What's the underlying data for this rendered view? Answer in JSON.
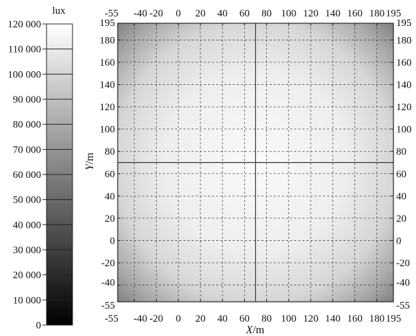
{
  "chart_data": {
    "type": "heatmap",
    "colorbar": {
      "unit_label": "lux",
      "range": [
        0,
        120000
      ],
      "ticks": [
        {
          "value": 120000,
          "label": "120 000"
        },
        {
          "value": 110000,
          "label": "110 000"
        },
        {
          "value": 100000,
          "label": "100 000"
        },
        {
          "value": 90000,
          "label": "90 000"
        },
        {
          "value": 80000,
          "label": "80 000"
        },
        {
          "value": 70000,
          "label": "70 000"
        },
        {
          "value": 60000,
          "label": "60 000"
        },
        {
          "value": 50000,
          "label": "50 000"
        },
        {
          "value": 40000,
          "label": "40 000"
        },
        {
          "value": 30000,
          "label": "30 000"
        },
        {
          "value": 20000,
          "label": "20 000"
        },
        {
          "value": 10000,
          "label": "10 000"
        },
        {
          "value": 0,
          "label": "0"
        }
      ],
      "color_low": "#000000",
      "color_high": "#ffffff"
    },
    "map": {
      "x_label_italic": "X",
      "x_label_unit": "/m",
      "y_label_italic": "Y",
      "y_label_unit": "/m",
      "xlim": [
        -55,
        195
      ],
      "ylim": [
        -55,
        195
      ],
      "x_ticks": [
        -55,
        -40,
        -20,
        0,
        20,
        40,
        60,
        80,
        100,
        120,
        140,
        160,
        180,
        195
      ],
      "y_ticks": [
        -55,
        -40,
        -20,
        0,
        20,
        40,
        60,
        80,
        100,
        120,
        140,
        160,
        180,
        195
      ],
      "x_tick_labels": [
        "-55",
        "-40",
        "-20",
        "0",
        "20",
        "40",
        "60",
        "80",
        "100",
        "120",
        "140",
        "160",
        "180",
        "195"
      ],
      "y_tick_labels": [
        "-55",
        "-40",
        "-20",
        "0",
        "20",
        "40",
        "60",
        "80",
        "100",
        "120",
        "140",
        "160",
        "180",
        "195"
      ],
      "grid": "dashed",
      "crosshair": {
        "x": 70,
        "y": 70
      },
      "illuminance_peak_lux": 110000,
      "illuminance_edge_lux": 60000
    }
  }
}
